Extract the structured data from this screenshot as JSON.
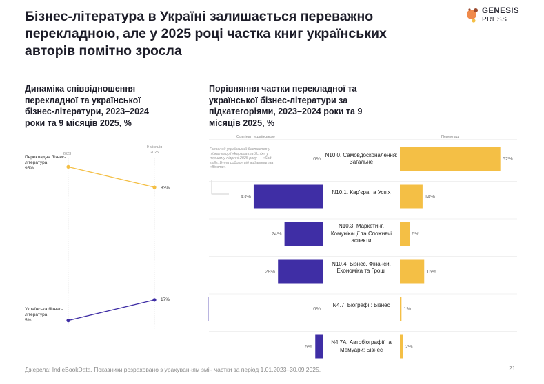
{
  "title": "Бізнес-література в Україні залишається переважно перекладною, але у 2025 році частка книг українських авторів помітно зросла",
  "logo": {
    "word": "GENESIS",
    "sub": "PRESS"
  },
  "colors": {
    "translated": "#f4bf45",
    "ukrainian": "#3f2ea5"
  },
  "chart_data": [
    {
      "type": "line",
      "title": "Динаміка співвідношення перекладної та української бізнес-літератури, 2023–2024 роки та 9 місяців 2025, %",
      "x": [
        "2023",
        "9 місяців 2025"
      ],
      "series": [
        {
          "name": "Перекладна бізнес-література",
          "values": [
            95,
            83
          ],
          "labels": [
            "95%",
            "83%"
          ]
        },
        {
          "name": "Українська бізнес-література",
          "values": [
            5,
            17
          ],
          "labels": [
            "5%",
            "17%"
          ]
        }
      ],
      "ylim": [
        0,
        100
      ],
      "legend_labels": {
        "translated": "Перекладна бізнес-література",
        "ukrainian": "Українська бізнес-література"
      },
      "ticks": {
        "start": "2023",
        "end": "9 місяців 2025"
      }
    },
    {
      "type": "bar",
      "title": "Порівняння частки перекладної та української бізнес-літератури за підкатегоріями, 2023–2024 роки та 9 місяців 2025, %",
      "left_header": "Оригінал українською",
      "right_header": "Переклад",
      "categories": [
        "N10.0. Самовдосконалення: Загальне",
        "N10.1. Кар'єра та Успіх",
        "N10.3. Маркетинг, Комунікації та Споживчі аспекти",
        "N10.4. Бізнес, Фінанси, Економіка та Гроші",
        "N4.7. Біографії: Бізнес",
        "N4.7А. Автобіографії та Мемуари: Бізнес"
      ],
      "series": [
        {
          "name": "Оригінал українською",
          "values": [
            0,
            43,
            24,
            28,
            0,
            5
          ]
        },
        {
          "name": "Переклад",
          "values": [
            62,
            14,
            6,
            15,
            1,
            2
          ]
        }
      ],
      "annotation": "Головний український бестселер у підкатегорії «Кар'єра та Успіх» у першому півріччі 2025 року — «Soft skills. Бути собою» від видавництва «Віхола».",
      "xlim": [
        0,
        65
      ]
    }
  ],
  "footer": "Джерела: IndieBookData. Показники розраховано з урахуванням змін частки за період 1.01.2023–30.09.2025.",
  "page_number": "21"
}
